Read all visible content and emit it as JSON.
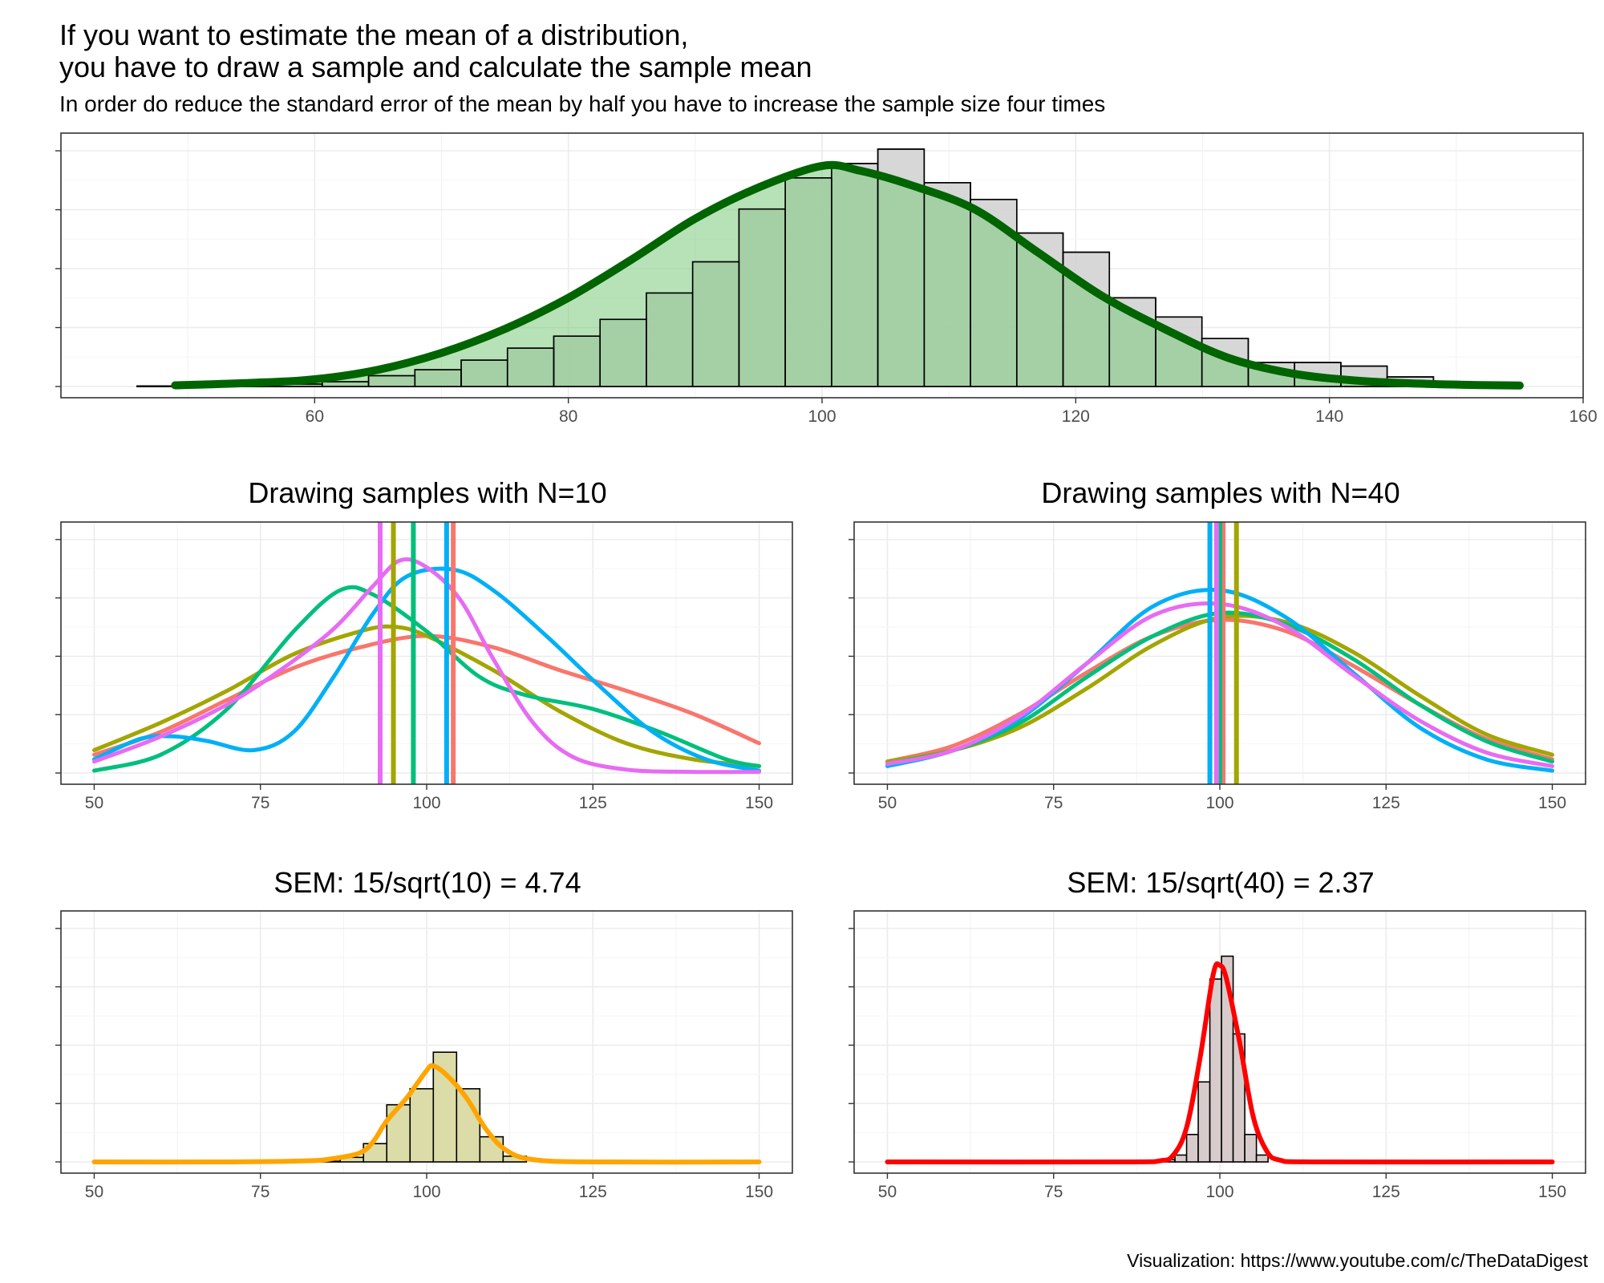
{
  "title_line1": "If you want to estimate the mean of a distribution,",
  "title_line2": "you have to draw a sample and calculate the sample mean",
  "subtitle": "In order do reduce the standard error of the mean by half you have to increase the sample size four times",
  "caption": "Visualization: https://www.youtube.com/c/TheDataDigest",
  "chart_data": [
    {
      "type": "bar",
      "id": "population",
      "title": "",
      "xlim": [
        40,
        160
      ],
      "xticks": [
        60,
        80,
        100,
        120,
        140,
        160
      ],
      "bin_width": 3.65,
      "bins_left": [
        46,
        49.65,
        53.3,
        56.95,
        60.6,
        64.25,
        67.9,
        71.55,
        75.2,
        78.85,
        82.5,
        86.15,
        89.8,
        93.45,
        97.1,
        100.75,
        104.4,
        108.05,
        111.7,
        115.35,
        119,
        122.65,
        126.3,
        129.95,
        133.6,
        137.25,
        140.9,
        144.55,
        148.2
      ],
      "counts": [
        0.002,
        0.003,
        0.005,
        0.01,
        0.02,
        0.045,
        0.07,
        0.11,
        0.16,
        0.21,
        0.28,
        0.39,
        0.52,
        0.74,
        0.87,
        0.93,
        0.99,
        0.85,
        0.78,
        0.64,
        0.56,
        0.37,
        0.29,
        0.2,
        0.1,
        0.1,
        0.085,
        0.04,
        0.015
      ],
      "ylim": [
        0,
        1.03
      ],
      "density_curve": {
        "color": "#006400",
        "x": [
          49,
          55,
          60,
          65,
          70,
          75,
          80,
          85,
          90,
          95,
          100,
          103,
          107,
          112,
          117,
          122,
          127,
          132,
          137,
          142,
          147,
          152,
          155
        ],
        "y": [
          0.005,
          0.015,
          0.03,
          0.07,
          0.14,
          0.24,
          0.37,
          0.53,
          0.7,
          0.83,
          0.92,
          0.9,
          0.84,
          0.74,
          0.56,
          0.38,
          0.24,
          0.12,
          0.055,
          0.025,
          0.012,
          0.006,
          0.004
        ]
      }
    },
    {
      "type": "line",
      "id": "samples_n10",
      "title": "Drawing samples with N=10",
      "xlim": [
        45,
        155
      ],
      "xticks": [
        50,
        75,
        100,
        125,
        150
      ],
      "ylim": [
        0,
        1.07
      ],
      "series": [
        {
          "color": "#F8766D",
          "mean": 104,
          "x": [
            50,
            60,
            70,
            80,
            90,
            100,
            110,
            120,
            130,
            140,
            150
          ],
          "y": [
            0.08,
            0.18,
            0.32,
            0.46,
            0.55,
            0.6,
            0.55,
            0.45,
            0.36,
            0.26,
            0.13
          ]
        },
        {
          "color": "#A3A500",
          "mean": 95,
          "x": [
            50,
            60,
            70,
            80,
            90,
            95,
            100,
            110,
            120,
            130,
            140,
            150
          ],
          "y": [
            0.1,
            0.22,
            0.36,
            0.52,
            0.62,
            0.64,
            0.6,
            0.45,
            0.27,
            0.13,
            0.06,
            0.03
          ]
        },
        {
          "color": "#00BF7D",
          "mean": 98,
          "x": [
            50,
            60,
            70,
            80,
            87,
            92,
            100,
            108,
            115,
            125,
            135,
            145,
            150
          ],
          "y": [
            0.01,
            0.08,
            0.28,
            0.62,
            0.8,
            0.78,
            0.62,
            0.42,
            0.34,
            0.28,
            0.18,
            0.06,
            0.03
          ]
        },
        {
          "color": "#00B0F6",
          "mean": 103,
          "x": [
            50,
            57,
            62,
            67,
            74,
            80,
            86,
            92,
            97,
            104,
            110,
            118,
            126,
            134,
            142,
            150
          ],
          "y": [
            0.06,
            0.15,
            0.16,
            0.14,
            0.1,
            0.18,
            0.42,
            0.7,
            0.86,
            0.89,
            0.8,
            0.6,
            0.38,
            0.18,
            0.06,
            0.01
          ]
        },
        {
          "color": "#E76BF3",
          "mean": 93,
          "x": [
            50,
            60,
            70,
            78,
            86,
            92,
            96,
            100,
            105,
            110,
            116,
            122,
            130,
            140,
            150
          ],
          "y": [
            0.05,
            0.16,
            0.3,
            0.45,
            0.63,
            0.82,
            0.93,
            0.9,
            0.76,
            0.5,
            0.22,
            0.07,
            0.015,
            0.005,
            0.005
          ]
        }
      ]
    },
    {
      "type": "line",
      "id": "samples_n40",
      "title": "Drawing samples with N=40",
      "xlim": [
        45,
        155
      ],
      "xticks": [
        50,
        75,
        100,
        125,
        150
      ],
      "ylim": [
        0,
        1.07
      ],
      "series": [
        {
          "color": "#F8766D",
          "mean": 100.5,
          "x": [
            50,
            60,
            70,
            80,
            90,
            100,
            110,
            120,
            130,
            140,
            150
          ],
          "y": [
            0.05,
            0.12,
            0.26,
            0.44,
            0.6,
            0.67,
            0.62,
            0.47,
            0.3,
            0.15,
            0.06
          ]
        },
        {
          "color": "#A3A500",
          "mean": 102.5,
          "x": [
            50,
            60,
            70,
            80,
            90,
            100,
            110,
            120,
            130,
            140,
            150
          ],
          "y": [
            0.05,
            0.1,
            0.2,
            0.37,
            0.56,
            0.68,
            0.66,
            0.53,
            0.34,
            0.17,
            0.08
          ]
        },
        {
          "color": "#00BF7D",
          "mean": 100,
          "x": [
            50,
            60,
            70,
            80,
            90,
            100,
            110,
            120,
            130,
            140,
            150
          ],
          "y": [
            0.04,
            0.1,
            0.22,
            0.42,
            0.6,
            0.7,
            0.65,
            0.5,
            0.3,
            0.14,
            0.05
          ]
        },
        {
          "color": "#00B0F6",
          "mean": 98.5,
          "x": [
            50,
            60,
            70,
            80,
            90,
            100,
            110,
            120,
            130,
            140,
            150
          ],
          "y": [
            0.03,
            0.1,
            0.24,
            0.48,
            0.73,
            0.8,
            0.68,
            0.44,
            0.2,
            0.06,
            0.01
          ]
        },
        {
          "color": "#E76BF3",
          "mean": 99.5,
          "x": [
            50,
            60,
            70,
            80,
            90,
            100,
            110,
            120,
            130,
            140,
            150
          ],
          "y": [
            0.04,
            0.1,
            0.25,
            0.48,
            0.69,
            0.74,
            0.64,
            0.43,
            0.23,
            0.09,
            0.03
          ]
        }
      ]
    },
    {
      "type": "bar",
      "id": "sem_n10",
      "title": "SEM: 15/sqrt(10) = 4.74",
      "xlim": [
        45,
        155
      ],
      "xticks": [
        50,
        75,
        100,
        125,
        150
      ],
      "ylim": [
        0,
        1.07
      ],
      "bin_width": 3.5,
      "bins_left": [
        83.5,
        87,
        90.5,
        94,
        97.5,
        101,
        104.5,
        108,
        111.5
      ],
      "counts": [
        0.003,
        0.02,
        0.08,
        0.25,
        0.32,
        0.48,
        0.32,
        0.11,
        0.025
      ],
      "fill": "#DCDCA8",
      "density_curve": {
        "color": "#FFA500",
        "x": [
          50,
          70,
          82,
          86,
          90,
          92,
          94,
          97,
          100,
          101,
          103,
          106,
          109,
          112,
          116,
          125,
          150
        ],
        "y": [
          0,
          0,
          0.005,
          0.015,
          0.04,
          0.09,
          0.18,
          0.28,
          0.4,
          0.42,
          0.38,
          0.28,
          0.14,
          0.05,
          0.01,
          0,
          0
        ]
      }
    },
    {
      "type": "bar",
      "id": "sem_n40",
      "title": "SEM: 15/sqrt(40) = 2.37",
      "xlim": [
        45,
        155
      ],
      "xticks": [
        50,
        75,
        100,
        125,
        150
      ],
      "ylim": [
        0,
        1.07
      ],
      "bin_width": 1.75,
      "bins_left": [
        91.5,
        93.25,
        95,
        96.75,
        98.5,
        100.25,
        102,
        103.75,
        105.5
      ],
      "counts": [
        0.01,
        0.03,
        0.12,
        0.35,
        0.8,
        0.9,
        0.56,
        0.12,
        0.03
      ],
      "fill": "#D8CBCB",
      "density_curve": {
        "color": "#FF0000",
        "x": [
          50,
          85,
          91,
          93,
          95,
          97,
          99,
          100,
          101,
          103,
          105,
          107,
          109,
          115,
          150
        ],
        "y": [
          0,
          0,
          0.005,
          0.03,
          0.15,
          0.45,
          0.82,
          0.86,
          0.8,
          0.52,
          0.2,
          0.05,
          0.008,
          0,
          0
        ]
      }
    }
  ]
}
